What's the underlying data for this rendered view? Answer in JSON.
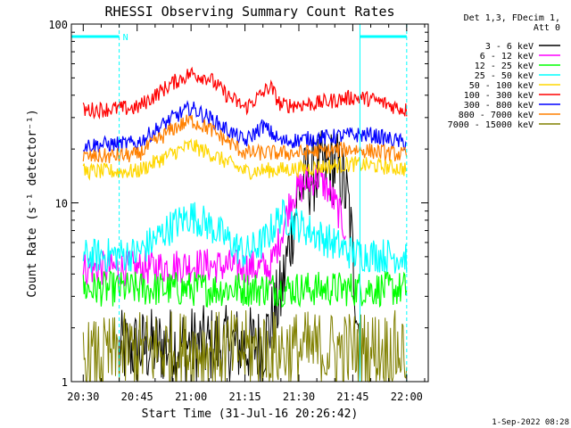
{
  "chart_data": {
    "type": "line",
    "title": "RHESSI Observing Summary Count Rates",
    "xlabel": "Start Time (31-Jul-16 20:26:42)",
    "ylabel": "Count Rate (s⁻¹ detector⁻¹)",
    "x_range": [
      "20:26:42",
      "22:06"
    ],
    "xticks": [
      "20:30",
      "20:45",
      "21:00",
      "21:15",
      "21:30",
      "21:45",
      "22:00"
    ],
    "yscale": "log",
    "ylim": [
      1,
      100
    ],
    "yticks": [
      "1",
      "10",
      "100"
    ],
    "legend_title": [
      "Det 1,3, FDecim 1,",
      "Att 0"
    ],
    "legend_position": "right",
    "footer_date": "1-Sep-2022 08:28",
    "night_marker": "N",
    "series": [
      {
        "name": "3 - 6 keV",
        "color": "#000000",
        "x": [
          "20:40",
          "20:55",
          "21:05",
          "21:20",
          "21:25",
          "21:30",
          "21:35",
          "21:40",
          "21:42",
          "21:44",
          "21:47"
        ],
        "y": [
          1.5,
          1.6,
          1.6,
          1.6,
          3.0,
          12,
          15,
          16,
          14,
          9,
          1.6
        ]
      },
      {
        "name": "6 - 12 keV",
        "color": "#ff00ff",
        "x": [
          "20:30",
          "20:45",
          "21:00",
          "21:22",
          "21:25",
          "21:28",
          "21:32",
          "21:35",
          "21:38",
          "21:41",
          "21:43"
        ],
        "y": [
          4.3,
          4.3,
          4.5,
          4.3,
          6.5,
          11,
          13,
          14,
          12,
          9,
          7
        ]
      },
      {
        "name": "12 - 25 keV",
        "color": "#00ff00",
        "x": [
          "20:30",
          "21:00",
          "21:30",
          "22:00"
        ],
        "y": [
          3.3,
          3.3,
          3.3,
          3.3
        ]
      },
      {
        "name": "25 - 50 keV",
        "color": "#00ffff",
        "x": [
          "20:30",
          "20:45",
          "20:55",
          "21:00",
          "21:05",
          "21:15",
          "21:20",
          "21:25",
          "21:45",
          "22:00"
        ],
        "y": [
          5.0,
          5.2,
          7.5,
          8.5,
          7.5,
          5.2,
          6.0,
          8.5,
          5.2,
          5.0
        ]
      },
      {
        "name": "50 - 100 keV",
        "color": "#ffd700",
        "x": [
          "20:30",
          "20:45",
          "20:55",
          "21:00",
          "21:05",
          "21:15",
          "21:30",
          "21:45",
          "22:00"
        ],
        "y": [
          15,
          15,
          19,
          21,
          19,
          15,
          15.5,
          16.5,
          15.5
        ]
      },
      {
        "name": "100 - 300 keV",
        "color": "#ff0000",
        "x": [
          "20:30",
          "20:45",
          "20:55",
          "21:00",
          "21:05",
          "21:10",
          "21:15",
          "21:20",
          "21:22",
          "21:25",
          "21:35",
          "21:45",
          "21:50",
          "22:00"
        ],
        "y": [
          33,
          34,
          47,
          53,
          50,
          40,
          34,
          41,
          45,
          35,
          36,
          39,
          38,
          33
        ]
      },
      {
        "name": "300 - 800 keV",
        "color": "#0000ff",
        "x": [
          "20:30",
          "20:45",
          "20:55",
          "21:00",
          "21:05",
          "21:15",
          "21:20",
          "21:25",
          "21:35",
          "21:45",
          "21:50",
          "22:00"
        ],
        "y": [
          21,
          21.5,
          30,
          34,
          30,
          22,
          27,
          22,
          23,
          24,
          24,
          21.5
        ]
      },
      {
        "name": "800 - 7000 keV",
        "color": "#ff8000",
        "x": [
          "20:30",
          "20:45",
          "20:55",
          "21:00",
          "21:05",
          "21:15",
          "21:30",
          "21:45",
          "22:00"
        ],
        "y": [
          18,
          18.5,
          26,
          29,
          26,
          19,
          19,
          20,
          18.5
        ]
      },
      {
        "name": "7000 - 15000 keV",
        "color": "#808000",
        "x": [
          "20:30",
          "20:45",
          "21:00",
          "21:30",
          "22:00"
        ],
        "y": [
          1.3,
          1.5,
          1.5,
          1.5,
          1.5
        ]
      }
    ]
  }
}
